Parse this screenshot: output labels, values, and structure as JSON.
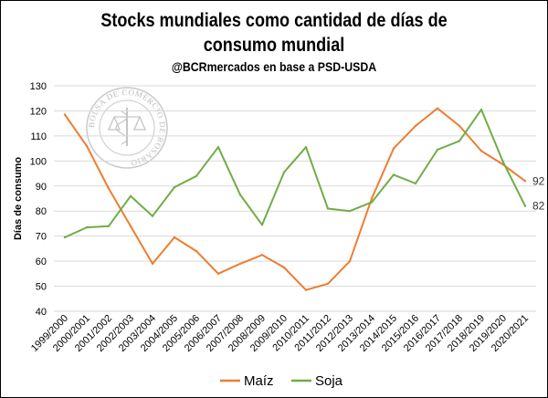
{
  "chart_data": {
    "type": "line",
    "title": "Stocks mundiales como cantidad de días de consumo mundial",
    "title_lines": [
      "Stocks mundiales como cantidad de días de",
      "consumo mundial"
    ],
    "subtitle": "@BCRmercados en base a PSD-USDA",
    "watermark_text": "BOLSA DE COMERCIO DE ROSARIO",
    "ylabel": "Días de consumo",
    "xlabel": "",
    "ylim": [
      40,
      130
    ],
    "yticks": [
      40,
      50,
      60,
      70,
      80,
      90,
      100,
      110,
      120,
      130
    ],
    "grid": true,
    "legend": "bottom",
    "categories": [
      "1999/2000",
      "2000/2001",
      "2001/2002",
      "2002/2003",
      "2003/2004",
      "2004/2005",
      "2005/2006",
      "2006/2007",
      "2007/2008",
      "2008/2009",
      "2009/2010",
      "2010/2011",
      "2011/2012",
      "2012/2013",
      "2013/2014",
      "2014/2015",
      "2015/2016",
      "2016/2017",
      "2017/2018",
      "2018/2019",
      "2019/2020",
      "2020/2021"
    ],
    "series": [
      {
        "name": "Maíz",
        "color": "#ED7D31",
        "values": [
          118.5,
          106,
          89,
          74,
          59,
          69.5,
          64,
          55,
          59,
          62.5,
          57.5,
          48.5,
          51,
          60,
          85,
          105,
          114,
          121,
          114,
          104,
          98.5,
          92
        ],
        "end_label": "92"
      },
      {
        "name": "Soja",
        "color": "#70AD47",
        "values": [
          69.5,
          73.5,
          74,
          86,
          78,
          89.5,
          94,
          105.5,
          86.5,
          74.5,
          95.5,
          105.5,
          81,
          80,
          83.5,
          94.5,
          91,
          104.5,
          108,
          120.5,
          99.5,
          82
        ],
        "end_label": "82"
      }
    ]
  }
}
